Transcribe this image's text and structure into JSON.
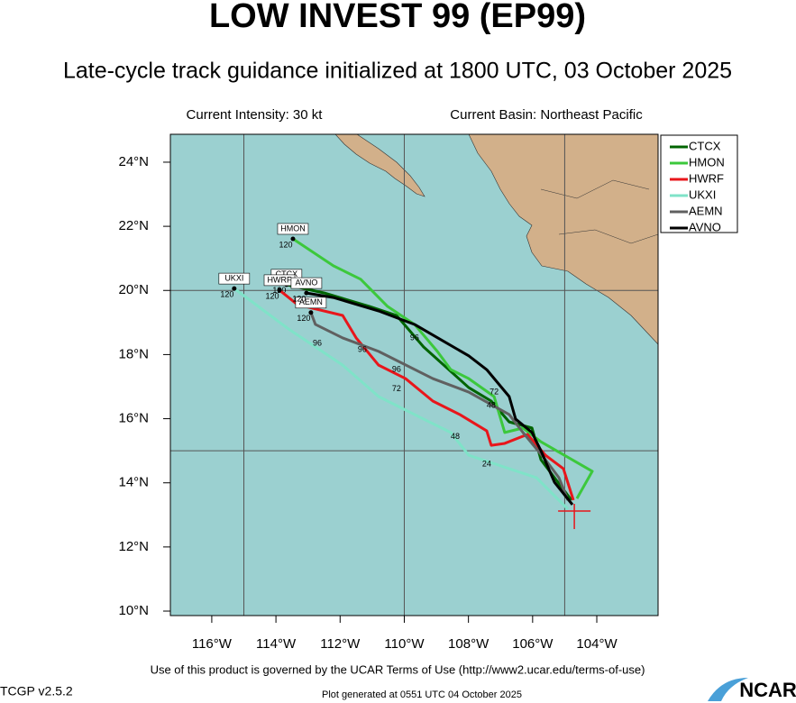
{
  "chart_data": {
    "type": "track",
    "title": "LOW INVEST 99 (EP99)",
    "subtitle": "Late-cycle track guidance initialized at 1800 UTC, 03 October 2025",
    "intensity": "Current Intensity: 30 kt",
    "basin": "Current Basin: Northeast Pacific",
    "xlim": [
      -117.29,
      -102.09
    ],
    "ylim": [
      9.86,
      24.87
    ],
    "xticks": [
      {
        "value": -116,
        "label": "116°W"
      },
      {
        "value": -114,
        "label": "114°W"
      },
      {
        "value": -112,
        "label": "112°W"
      },
      {
        "value": -110,
        "label": "110°W"
      },
      {
        "value": -108,
        "label": "108°W"
      },
      {
        "value": -106,
        "label": "106°W"
      },
      {
        "value": -104,
        "label": "104°W"
      }
    ],
    "yticks": [
      {
        "value": 10,
        "label": "10°N"
      },
      {
        "value": 12,
        "label": "12°N"
      },
      {
        "value": 14,
        "label": "14°N"
      },
      {
        "value": 16,
        "label": "16°N"
      },
      {
        "value": 18,
        "label": "18°N"
      },
      {
        "value": 20,
        "label": "20°N"
      },
      {
        "value": 22,
        "label": "22°N"
      },
      {
        "value": 24,
        "label": "24°N"
      }
    ],
    "xgrid": [
      -115,
      -110,
      -105
    ],
    "ygrid": [
      15,
      20
    ],
    "current_position": {
      "x": -104.7,
      "y": 13.12
    },
    "series": [
      {
        "name": "CTCX",
        "color": "#006400",
        "end_hour": 120,
        "x": [
          -104.79,
          -105.74,
          -106.02,
          -106.73,
          -107.29,
          -107.99,
          -109.4,
          -110.24,
          -111.08,
          -112.49,
          -113.67
        ],
        "values": [
          13.46,
          14.72,
          15.71,
          15.9,
          16.55,
          16.97,
          18.24,
          19.22,
          19.5,
          19.92,
          20.18
        ]
      },
      {
        "name": "HMON",
        "color": "#3cc83c",
        "end_hour": 120,
        "x": [
          -104.62,
          -104.14,
          -105.74,
          -106.3,
          -106.87,
          -107.2,
          -107.99,
          -108.55,
          -108.97,
          -109.68,
          -110.52,
          -111.36,
          -112.21,
          -113.47
        ],
        "values": [
          13.51,
          14.36,
          15.28,
          15.71,
          15.57,
          16.69,
          17.25,
          17.53,
          18.1,
          18.94,
          19.5,
          20.35,
          20.77,
          21.61
        ]
      },
      {
        "name": "HWRF",
        "color": "#e8161b",
        "end_hour": 120,
        "x": [
          -104.73,
          -105.04,
          -105.6,
          -106.16,
          -106.87,
          -107.29,
          -107.43,
          -108.27,
          -109.11,
          -109.96,
          -110.8,
          -111.5,
          -111.92,
          -113.33,
          -113.89
        ],
        "values": [
          13.46,
          14.44,
          14.86,
          15.51,
          15.23,
          15.17,
          15.62,
          16.13,
          16.55,
          17.25,
          17.67,
          18.52,
          19.22,
          19.56,
          20.01
        ]
      },
      {
        "name": "UKXI",
        "color": "#7fe3c8",
        "end_hour": 120,
        "x": [
          -104.9,
          -105.88,
          -107.99,
          -108.55,
          -109.4,
          -110.8,
          -111.92,
          -113.61,
          -115.3
        ],
        "values": [
          13.18,
          14.16,
          14.86,
          15.57,
          15.99,
          16.69,
          17.67,
          18.8,
          20.06
        ]
      },
      {
        "name": "AEMN",
        "color": "#606060",
        "end_hour": 120,
        "x": [
          -104.9,
          -105.18,
          -105.6,
          -106.3,
          -106.73,
          -107.99,
          -109.11,
          -110.8,
          -111.92,
          -112.77,
          -112.91
        ],
        "values": [
          13.46,
          14.16,
          14.72,
          15.57,
          16.13,
          16.83,
          17.25,
          18.1,
          18.52,
          18.94,
          19.31
        ]
      },
      {
        "name": "AVNO",
        "color": "#000000",
        "end_hour": 120,
        "x": [
          -104.76,
          -105.32,
          -105.74,
          -106.02,
          -106.53,
          -106.73,
          -107.43,
          -107.99,
          -109.68,
          -110.8,
          -112.21,
          -113.05
        ],
        "values": [
          13.32,
          14.02,
          15.0,
          15.57,
          15.99,
          16.69,
          17.53,
          17.96,
          18.94,
          19.36,
          19.78,
          19.92
        ]
      }
    ],
    "hour_labels": [
      {
        "text": 96,
        "x": -109.68,
        "y": 18.52
      },
      {
        "text": 72,
        "x": -107.2,
        "y": 16.83
      },
      {
        "text": 48,
        "x": -107.29,
        "y": 16.41
      },
      {
        "text": 24,
        "x": -107.43,
        "y": 14.58
      },
      {
        "text": 48,
        "x": -108.41,
        "y": 15.43
      },
      {
        "text": 72,
        "x": -110.24,
        "y": 16.92
      },
      {
        "text": 96,
        "x": -110.24,
        "y": 17.53
      },
      {
        "text": 96,
        "x": -112.71,
        "y": 18.35
      },
      {
        "text": 96,
        "x": -111.31,
        "y": 18.15
      }
    ]
  },
  "footer": {
    "terms": "Use of this product is governed by the UCAR Terms of Use (http://www2.ucar.edu/terms-of-use)",
    "version": "TCGP v2.5.2",
    "generated": "Plot generated at 0551 UTC  04 October 2025",
    "logo": "NCAR"
  }
}
